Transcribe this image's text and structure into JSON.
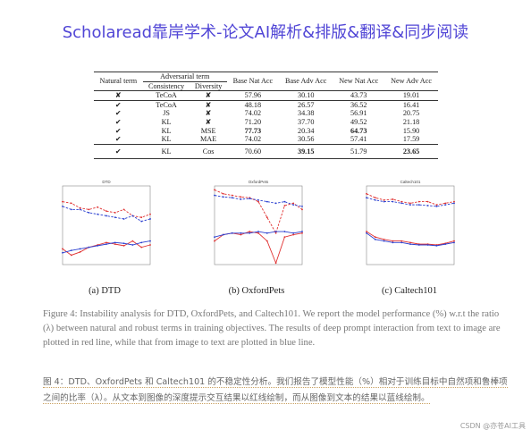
{
  "header": {
    "title": "Scholaread靠岸学术-论文AI解析&排版&翻译&同步阅读"
  },
  "table": {
    "group_header": "Adversarial term",
    "columns": [
      "Natural term",
      "Consistency",
      "Diversity",
      "Base Nat Acc",
      "Base Adv Acc",
      "New Nat Acc",
      "New Adv Acc"
    ],
    "rows": [
      [
        "✘",
        "TeCoA",
        "✘",
        "57.96",
        "30.10",
        "43.73",
        "19.01"
      ],
      [
        "✔",
        "TeCoA",
        "✘",
        "48.18",
        "26.57",
        "36.52",
        "16.41"
      ],
      [
        "✔",
        "JS",
        "✘",
        "74.02",
        "34.38",
        "56.91",
        "20.75"
      ],
      [
        "✔",
        "KL",
        "✘",
        "71.20",
        "37.70",
        "49.52",
        "21.18"
      ],
      [
        "✔",
        "KL",
        "MSE",
        "77.73",
        "20.34",
        "64.73",
        "15.90"
      ],
      [
        "✔",
        "KL",
        "MAE",
        "74.02",
        "30.56",
        "57.41",
        "17.59"
      ],
      [
        "✔",
        "KL",
        "Cos",
        "70.60",
        "39.15",
        "51.79",
        "23.65"
      ]
    ]
  },
  "figures": [
    {
      "caption": "(a) DTD",
      "chart_data": {
        "type": "line",
        "title": "DTD",
        "x": [
          0,
          0.1,
          0.2,
          0.3,
          0.4,
          0.5,
          0.6,
          0.7,
          0.8,
          0.9,
          1
        ],
        "xlim": [
          0,
          1
        ],
        "ylim": [
          0,
          1
        ],
        "series": [
          {
            "color": "#e03030",
            "dash": true,
            "values": [
              0.8,
              0.78,
              0.72,
              0.7,
              0.73,
              0.68,
              0.66,
              0.7,
              0.62,
              0.6,
              0.64
            ]
          },
          {
            "color": "#2a3fd0",
            "dash": true,
            "values": [
              0.74,
              0.7,
              0.7,
              0.66,
              0.64,
              0.62,
              0.6,
              0.58,
              0.62,
              0.55,
              0.58
            ]
          },
          {
            "color": "#e03030",
            "dash": false,
            "values": [
              0.2,
              0.12,
              0.16,
              0.22,
              0.25,
              0.28,
              0.26,
              0.24,
              0.3,
              0.22,
              0.25
            ]
          },
          {
            "color": "#2a3fd0",
            "dash": false,
            "values": [
              0.15,
              0.18,
              0.2,
              0.22,
              0.24,
              0.26,
              0.28,
              0.27,
              0.25,
              0.28,
              0.3
            ]
          }
        ]
      }
    },
    {
      "caption": "(b) OxfordPets",
      "chart_data": {
        "type": "line",
        "title": "OxfordPets",
        "x": [
          0,
          0.1,
          0.2,
          0.3,
          0.4,
          0.5,
          0.6,
          0.7,
          0.8,
          0.9,
          1
        ],
        "xlim": [
          0,
          1
        ],
        "ylim": [
          0,
          1
        ],
        "series": [
          {
            "color": "#e03030",
            "dash": true,
            "values": [
              0.95,
              0.9,
              0.88,
              0.86,
              0.85,
              0.8,
              0.6,
              0.4,
              0.75,
              0.78,
              0.7
            ]
          },
          {
            "color": "#2a3fd0",
            "dash": true,
            "values": [
              0.88,
              0.86,
              0.85,
              0.83,
              0.84,
              0.82,
              0.8,
              0.78,
              0.8,
              0.76,
              0.74
            ]
          },
          {
            "color": "#e03030",
            "dash": false,
            "values": [
              0.3,
              0.38,
              0.4,
              0.38,
              0.42,
              0.4,
              0.3,
              0.02,
              0.35,
              0.38,
              0.4
            ]
          },
          {
            "color": "#2a3fd0",
            "dash": false,
            "values": [
              0.35,
              0.38,
              0.4,
              0.4,
              0.4,
              0.42,
              0.4,
              0.42,
              0.42,
              0.4,
              0.42
            ]
          }
        ]
      }
    },
    {
      "caption": "(c) Caltech101",
      "chart_data": {
        "type": "line",
        "title": "Caltech101",
        "x": [
          0,
          0.1,
          0.2,
          0.3,
          0.4,
          0.5,
          0.6,
          0.7,
          0.8,
          0.9,
          1
        ],
        "xlim": [
          0,
          1
        ],
        "ylim": [
          0,
          1
        ],
        "series": [
          {
            "color": "#e03030",
            "dash": true,
            "values": [
              0.9,
              0.85,
              0.82,
              0.83,
              0.8,
              0.78,
              0.8,
              0.8,
              0.76,
              0.78,
              0.8
            ]
          },
          {
            "color": "#2a3fd0",
            "dash": true,
            "values": [
              0.85,
              0.82,
              0.8,
              0.8,
              0.78,
              0.76,
              0.76,
              0.75,
              0.74,
              0.76,
              0.78
            ]
          },
          {
            "color": "#e03030",
            "dash": false,
            "values": [
              0.42,
              0.35,
              0.32,
              0.3,
              0.3,
              0.28,
              0.26,
              0.26,
              0.25,
              0.27,
              0.3
            ]
          },
          {
            "color": "#2a3fd0",
            "dash": false,
            "values": [
              0.4,
              0.32,
              0.3,
              0.28,
              0.28,
              0.26,
              0.25,
              0.25,
              0.24,
              0.26,
              0.28
            ]
          }
        ]
      }
    }
  ],
  "caption_en": "Figure 4: Instability analysis for DTD, OxfordPets, and Caltech101. We report the model performance (%) w.r.t the ratio (λ) between natural and robust terms in training objectives. The results of deep prompt interaction from text to image are plotted in red line, while that from image to text are plotted in blue line.",
  "caption_zh": "图 4：DTD、OxfordPets 和 Caltech101 的不稳定性分析。我们报告了模型性能（%）相对于训练目标中自然项和鲁棒项之间的比率（λ）。从文本到图像的深度提示交互结果以红线绘制，而从图像到文本的结果以蓝线绘制。",
  "watermark": "CSDN @亦苍AI工具"
}
